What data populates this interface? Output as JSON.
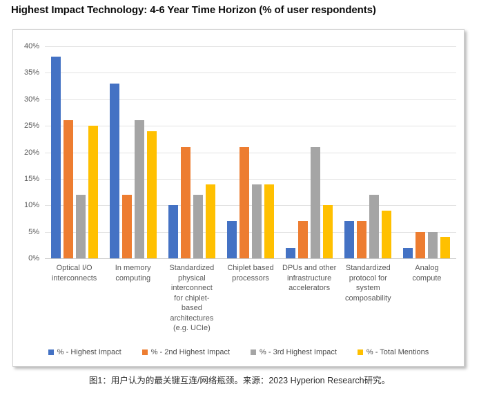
{
  "title": "Highest Impact Technology: 4-6 Year Time Horizon (% of user respondents)",
  "caption": "图1：用户认为的最关键互连/网络瓶颈。来源：2023 Hyperion Research研究。",
  "colors": {
    "series_highest": "#4472C4",
    "series_second": "#ED7D31",
    "series_third": "#A5A5A5",
    "series_total": "#FFC000",
    "gridline": "#E2E2E2",
    "axis_text": "#595959"
  },
  "chart_data": {
    "type": "bar",
    "title": "Highest Impact Technology: 4-6 Year Time Horizon (% of user respondents)",
    "categories": [
      "Optical I/O interconnects",
      "In memory computing",
      "Standardized physical interconnect for chiplet-based architectures (e.g. UCIe)",
      "Chiplet based processors",
      "DPUs and other infrastructure accelerators",
      "Standardized protocol for system composability",
      "Analog compute"
    ],
    "category_label_lines": [
      [
        "Optical I/O",
        "interconnects"
      ],
      [
        "In memory",
        "computing"
      ],
      [
        "Standardized",
        "physical",
        "interconnect",
        "for chiplet-",
        "based",
        "architectures",
        "(e.g. UCIe)"
      ],
      [
        "Chiplet based",
        "processors"
      ],
      [
        "DPUs and other",
        "infrastructure",
        "accelerators"
      ],
      [
        "Standardized",
        "protocol for",
        "system",
        "composability"
      ],
      [
        "Analog",
        "compute"
      ]
    ],
    "series": [
      {
        "name": "% - Highest Impact",
        "color": "#4472C4",
        "values": [
          38,
          33,
          10,
          7,
          2,
          7,
          2
        ]
      },
      {
        "name": "% - 2nd Highest Impact",
        "color": "#ED7D31",
        "values": [
          26,
          12,
          21,
          21,
          7,
          7,
          5
        ]
      },
      {
        "name": "% - 3rd Highest Impact",
        "color": "#A5A5A5",
        "values": [
          12,
          26,
          12,
          14,
          21,
          12,
          5
        ]
      },
      {
        "name": "% - Total Mentions",
        "color": "#FFC000",
        "values": [
          25,
          24,
          14,
          14,
          10,
          9,
          4
        ]
      }
    ],
    "xlabel": "",
    "ylabel": "",
    "ylim": [
      0,
      40
    ],
    "ytick_step": 5,
    "ytick_labels": [
      "0%",
      "5%",
      "10%",
      "15%",
      "20%",
      "25%",
      "30%",
      "35%",
      "40%"
    ],
    "grid": true,
    "legend_position": "bottom"
  }
}
